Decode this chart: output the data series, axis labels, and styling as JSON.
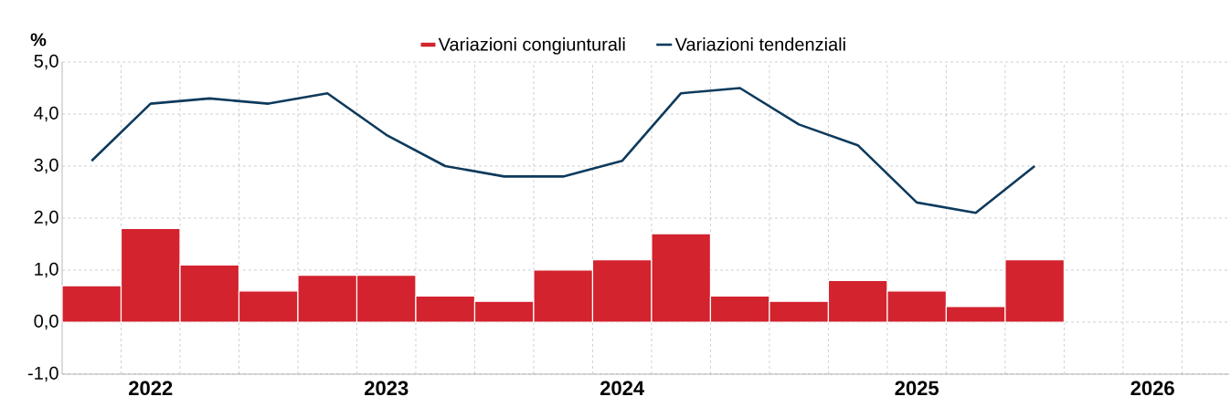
{
  "chart_data": {
    "type": "bar",
    "ylabel": "%",
    "categories": [
      null,
      "2022",
      null,
      null,
      null,
      "2023",
      null,
      null,
      null,
      "2024",
      null,
      null,
      null,
      null,
      "2025",
      null,
      null,
      null,
      "2026",
      null
    ],
    "series": [
      {
        "name": "Variazioni congiunturali",
        "color": "#d2232e",
        "values": [
          0.7,
          1.8,
          1.1,
          0.6,
          0.9,
          0.9,
          0.5,
          0.4,
          1.0,
          1.2,
          1.7,
          0.5,
          0.4,
          0.8,
          0.6,
          0.3,
          1.2,
          null,
          null,
          null
        ]
      },
      {
        "name": "Variazioni tendenziali",
        "type": "line",
        "color": "#0d3a5c",
        "values": [
          3.1,
          4.2,
          4.3,
          4.2,
          4.4,
          3.6,
          3.0,
          2.8,
          2.8,
          3.1,
          4.4,
          4.5,
          3.8,
          3.4,
          2.3,
          2.1,
          3.0,
          null,
          null,
          null
        ]
      }
    ],
    "ylim": [
      -1,
      5
    ],
    "yticks": [
      {
        "value": -1,
        "label": "-1,0"
      },
      {
        "value": 0,
        "label": "0,0"
      },
      {
        "value": 1,
        "label": "1,0"
      },
      {
        "value": 2,
        "label": "2,0"
      },
      {
        "value": 3,
        "label": "3,0"
      },
      {
        "value": 4,
        "label": "4,0"
      },
      {
        "value": 5,
        "label": "5,0"
      }
    ],
    "grid": true,
    "legend": "top"
  }
}
